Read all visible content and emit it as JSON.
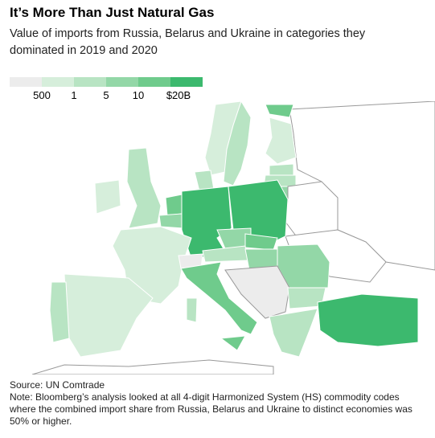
{
  "header": {
    "title": "It’s More Than Just Natural Gas",
    "subtitle": "Value of imports from Russia, Belarus and Ukraine in categories they dominated in 2019 and 2020"
  },
  "legend": {
    "colors": [
      "#ececec",
      "#d6eedb",
      "#b8e4c3",
      "#93d7a7",
      "#6fcb8c",
      "#3cb96e"
    ],
    "labels": [
      "500",
      "1",
      "5",
      "10",
      "$20B"
    ]
  },
  "footer": {
    "source": "Source: UN Comtrade",
    "note": "Note: Bloomberg’s analysis looked at all 4-digit Harmonized System (HS) commodity codes where the combined import share from Russia, Belarus and Ukraine to distinct economies was 50% or higher."
  }
}
